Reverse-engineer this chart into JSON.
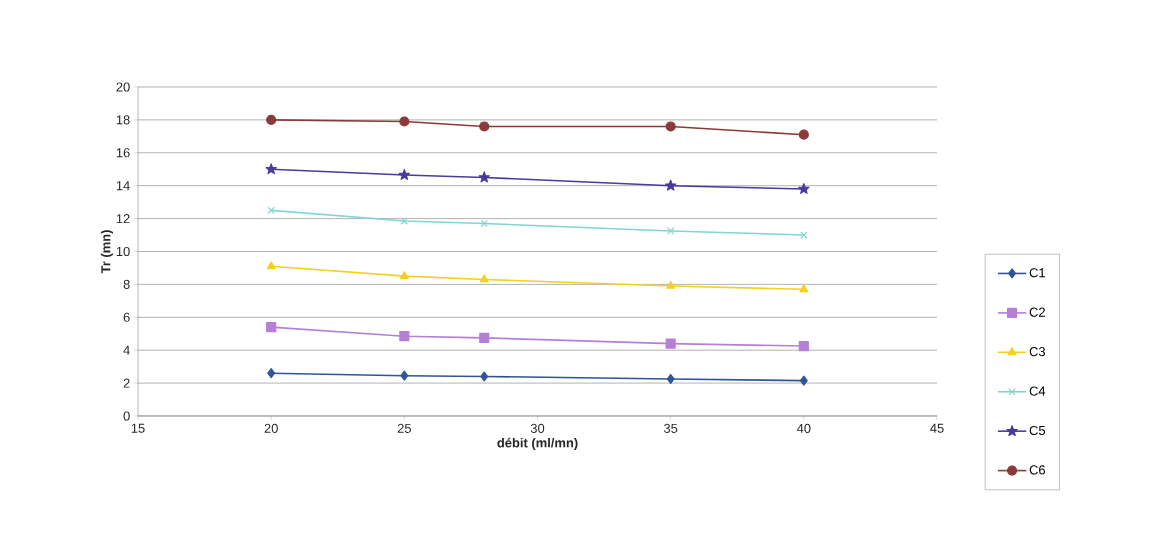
{
  "chart_data": {
    "type": "line",
    "xlabel": "débit (ml/mn)",
    "ylabel": "Tr (mn)",
    "x": [
      20,
      25,
      28,
      35,
      40
    ],
    "xlim": [
      15,
      45
    ],
    "xticks": [
      15,
      20,
      25,
      30,
      35,
      40,
      45
    ],
    "ylim": [
      0,
      20
    ],
    "yticks": [
      0,
      2,
      4,
      6,
      8,
      10,
      12,
      14,
      16,
      18,
      20
    ],
    "grid": "y",
    "legend": "right",
    "line_style": "solid",
    "series": [
      {
        "name": "C1",
        "color": "#2f5597",
        "marker": "diamond",
        "values": [
          2.6,
          2.45,
          2.4,
          2.25,
          2.15
        ]
      },
      {
        "name": "C2",
        "color": "#b57fd6",
        "marker": "square",
        "values": [
          5.4,
          4.85,
          4.75,
          4.4,
          4.25
        ]
      },
      {
        "name": "C3",
        "color": "#f5d020",
        "marker": "triangle",
        "values": [
          9.1,
          8.5,
          8.3,
          7.9,
          7.7
        ]
      },
      {
        "name": "C4",
        "color": "#7fd6d2",
        "marker": "cross",
        "values": [
          12.5,
          11.85,
          11.7,
          11.25,
          11.0
        ]
      },
      {
        "name": "C5",
        "color": "#4b3a9a",
        "marker": "star",
        "values": [
          15.0,
          14.65,
          14.5,
          14.0,
          13.8
        ]
      },
      {
        "name": "C6",
        "color": "#8b3a3a",
        "marker": "circle",
        "values": [
          18.0,
          17.9,
          17.6,
          17.6,
          17.1
        ]
      }
    ]
  }
}
